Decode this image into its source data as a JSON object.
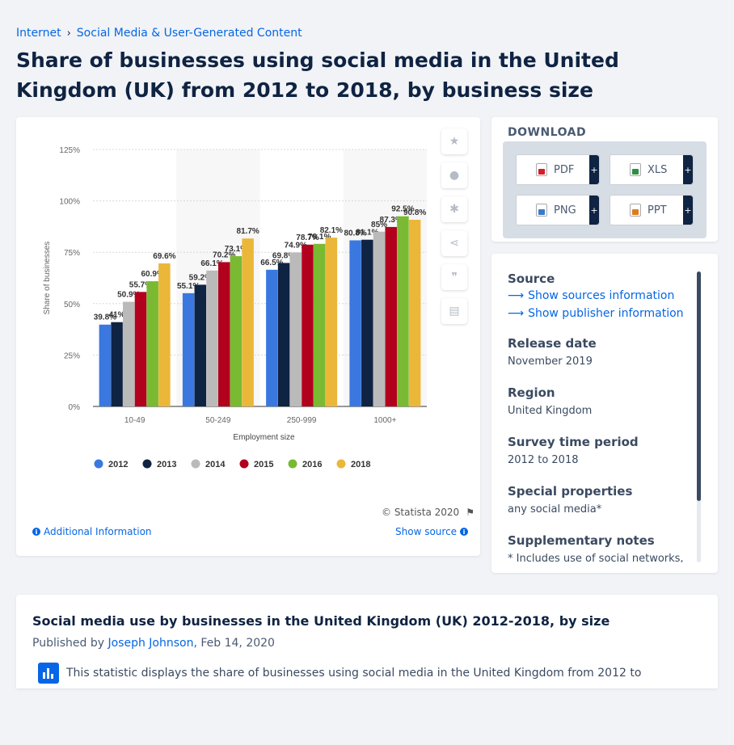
{
  "breadcrumb": {
    "items": [
      "Internet",
      "Social Media & User-Generated Content"
    ],
    "separator": "›"
  },
  "page_title": "Share of businesses using social media in the United Kingdom (UK) from 2012 to 2018, by business size",
  "chart_data": {
    "type": "bar",
    "title": "",
    "xlabel": "Employment size",
    "ylabel": "Share of businesses",
    "categories": [
      "10-49",
      "50-249",
      "250-999",
      "1000+"
    ],
    "ylim": [
      0,
      125
    ],
    "yticks": [
      "0%",
      "25%",
      "50%",
      "75%",
      "100%",
      "125%"
    ],
    "ytick_values": [
      0,
      25,
      50,
      75,
      100,
      125
    ],
    "grid": true,
    "legend_position": "bottom",
    "series": [
      {
        "name": "2012",
        "color": "#3a78e0",
        "values": [
          39.8,
          55.1,
          66.5,
          80.8
        ],
        "labels": [
          "39.8%",
          "55.1%",
          "66.5%",
          "80.8%"
        ]
      },
      {
        "name": "2013",
        "color": "#0f2342",
        "values": [
          41,
          59.2,
          69.8,
          81.1
        ],
        "labels": [
          "41%",
          "59.2%",
          "69.8%",
          "81.1%"
        ]
      },
      {
        "name": "2014",
        "color": "#bababa",
        "values": [
          50.9,
          66.1,
          74.9,
          85
        ],
        "labels": [
          "50.9%",
          "66.1%",
          "74.9%",
          "85%"
        ]
      },
      {
        "name": "2015",
        "color": "#b2011d",
        "values": [
          55.7,
          70.2,
          78.7,
          87.3
        ],
        "labels": [
          "55.7%",
          "70.2%",
          "78.7%",
          "87.3%"
        ]
      },
      {
        "name": "2016",
        "color": "#79ba32",
        "values": [
          60.9,
          73.1,
          79.1,
          92.5
        ],
        "labels": [
          "60.9%",
          "73.1%",
          "79.1%",
          "92.5%"
        ]
      },
      {
        "name": "2018",
        "color": "#ebb739",
        "values": [
          69.6,
          81.7,
          82.1,
          90.8
        ],
        "labels": [
          "69.6%",
          "81.7%",
          "82.1%",
          "90.8%"
        ]
      }
    ]
  },
  "chart_footer": {
    "copyright": "© Statista 2020",
    "additional_info": "Additional Information",
    "show_source": "Show source"
  },
  "tools": [
    "star-icon",
    "bell-icon",
    "gear-icon",
    "share-icon",
    "quote-icon",
    "print-icon"
  ],
  "download": {
    "title": "DOWNLOAD",
    "buttons": [
      {
        "label": "PDF",
        "icon": "pdf"
      },
      {
        "label": "XLS",
        "icon": "xls"
      },
      {
        "label": "PNG",
        "icon": "png"
      },
      {
        "label": "PPT",
        "icon": "ppt"
      }
    ],
    "plus": "+"
  },
  "source_panel": {
    "source_heading": "Source",
    "show_sources": "Show sources information",
    "show_publisher": "Show publisher information",
    "release_heading": "Release date",
    "release_value": "November 2019",
    "region_heading": "Region",
    "region_value": "United Kingdom",
    "survey_heading": "Survey time period",
    "survey_value": "2012 to 2018",
    "special_heading": "Special properties",
    "special_value": "any social media*",
    "notes_heading": "Supplementary notes",
    "notes_value": "* Includes use of social networks, business blogs, or microblogs."
  },
  "description": {
    "title": "Social media use by businesses in the United Kingdom (UK) 2012-2018, by size",
    "published_by": "Published by",
    "author": "Joseph Johnson",
    "date": ", Feb 14, 2020",
    "text": "This statistic displays the share of businesses using social media in the United Kingdom from 2012 to"
  }
}
